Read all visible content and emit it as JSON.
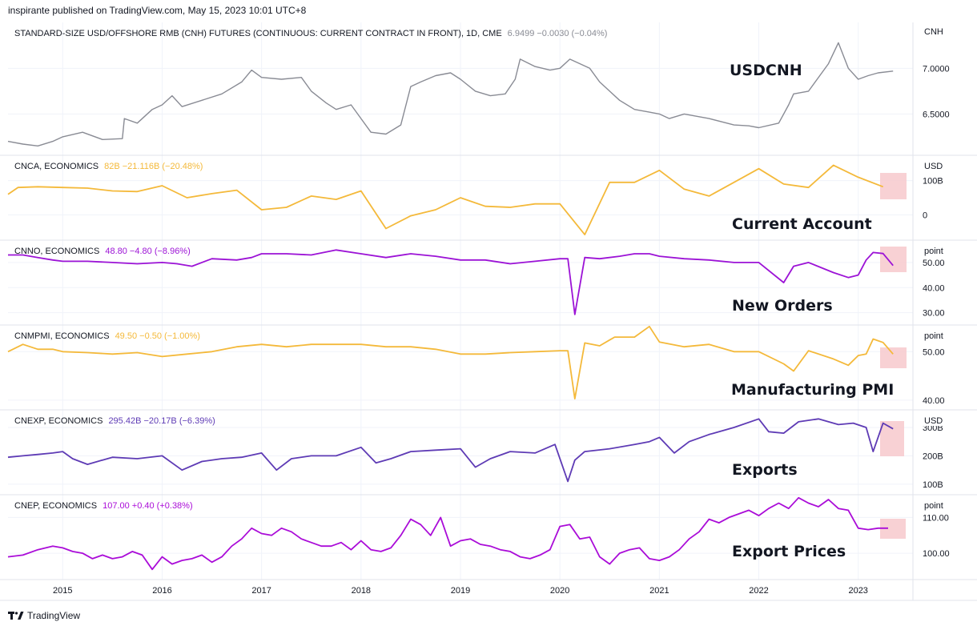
{
  "header": {
    "published": "inspirante published on TradingView.com, May 15, 2023 10:01 UTC+8"
  },
  "footer": {
    "brand": "TradingView",
    "logo_icon": "tradingview-logo-icon"
  },
  "x_axis": {
    "labels": [
      "2015",
      "2016",
      "2017",
      "2018",
      "2019",
      "2020",
      "2021",
      "2022",
      "2023"
    ]
  },
  "colors": {
    "usdcnh": "#898b94",
    "cnca": "#f4b93a",
    "cnno": "#9c13d6",
    "cnmpmi": "#f4b93a",
    "cnexp": "#5e3bb5",
    "cnep": "#aa0cd8",
    "highlight": "#f7c9cd",
    "grid": "#f0f3fa",
    "pane_border": "#e0e3eb"
  },
  "chart_data": [
    {
      "id": "usdcnh",
      "type": "line",
      "legend_title": "STANDARD-SIZE USD/OFFSHORE RMB (CNH) FUTURES (CONTINUOUS: CURRENT CONTRACT IN FRONT), 1D, CME",
      "legend_values": "6.9499  −0.0030 (−0.04%)",
      "caption": "USDCNH",
      "unit": "CNH",
      "y_ticks": [
        {
          "value": 7.0,
          "label": "7.0000"
        },
        {
          "value": 6.5,
          "label": "6.5000"
        }
      ],
      "ylim": [
        6.1,
        7.45
      ],
      "x": [
        2014.45,
        2014.6,
        2014.75,
        2014.9,
        2015.0,
        2015.2,
        2015.4,
        2015.6,
        2015.62,
        2015.75,
        2015.9,
        2016.0,
        2016.1,
        2016.2,
        2016.4,
        2016.6,
        2016.8,
        2016.9,
        2017.0,
        2017.2,
        2017.4,
        2017.5,
        2017.65,
        2017.75,
        2017.9,
        2018.0,
        2018.1,
        2018.25,
        2018.4,
        2018.5,
        2018.6,
        2018.75,
        2018.9,
        2019.0,
        2019.15,
        2019.3,
        2019.45,
        2019.55,
        2019.6,
        2019.75,
        2019.9,
        2020.0,
        2020.1,
        2020.3,
        2020.4,
        2020.5,
        2020.6,
        2020.75,
        2020.9,
        2021.0,
        2021.1,
        2021.25,
        2021.5,
        2021.75,
        2021.9,
        2022.0,
        2022.2,
        2022.3,
        2022.35,
        2022.5,
        2022.7,
        2022.8,
        2022.9,
        2023.0,
        2023.1,
        2023.2,
        2023.35
      ],
      "y": [
        6.2,
        6.17,
        6.15,
        6.2,
        6.25,
        6.3,
        6.22,
        6.23,
        6.45,
        6.4,
        6.55,
        6.6,
        6.7,
        6.58,
        6.65,
        6.72,
        6.85,
        6.98,
        6.9,
        6.88,
        6.9,
        6.75,
        6.62,
        6.55,
        6.6,
        6.45,
        6.3,
        6.28,
        6.38,
        6.8,
        6.85,
        6.92,
        6.95,
        6.88,
        6.75,
        6.7,
        6.72,
        6.88,
        7.1,
        7.02,
        6.98,
        7.0,
        7.1,
        7.0,
        6.85,
        6.75,
        6.65,
        6.55,
        6.52,
        6.5,
        6.45,
        6.5,
        6.45,
        6.38,
        6.37,
        6.35,
        6.4,
        6.6,
        6.72,
        6.75,
        7.05,
        7.28,
        7.0,
        6.88,
        6.92,
        6.95,
        6.97
      ]
    },
    {
      "id": "cnca",
      "type": "line",
      "legend_title": "CNCA, ECONOMICS",
      "legend_values": "82B  −21.116B (−20.48%)",
      "caption": "Current Account",
      "unit": "USD",
      "y_ticks": [
        {
          "value": 100,
          "label": "100B"
        },
        {
          "value": 0,
          "label": "0"
        }
      ],
      "ylim": [
        -60,
        160
      ],
      "x": [
        2014.45,
        2014.55,
        2014.75,
        2015.0,
        2015.25,
        2015.5,
        2015.75,
        2016.0,
        2016.25,
        2016.5,
        2016.75,
        2017.0,
        2017.25,
        2017.5,
        2017.75,
        2018.0,
        2018.25,
        2018.5,
        2018.75,
        2019.0,
        2019.25,
        2019.5,
        2019.75,
        2020.0,
        2020.25,
        2020.5,
        2020.75,
        2021.0,
        2021.25,
        2021.5,
        2021.75,
        2022.0,
        2022.25,
        2022.5,
        2022.75,
        2023.0,
        2023.25
      ],
      "y": [
        60,
        80,
        82,
        80,
        78,
        70,
        68,
        85,
        50,
        62,
        72,
        15,
        22,
        55,
        45,
        70,
        -40,
        -3,
        15,
        50,
        25,
        22,
        32,
        32,
        -58,
        95,
        95,
        130,
        75,
        55,
        95,
        135,
        90,
        80,
        145,
        110,
        82
      ]
    },
    {
      "id": "cnno",
      "type": "line",
      "legend_title": "CNNO, ECONOMICS",
      "legend_values": "48.80  −4.80 (−8.96%)",
      "caption": "New Orders",
      "unit": "point",
      "y_ticks": [
        {
          "value": 50,
          "label": "50.00"
        },
        {
          "value": 40,
          "label": "40.00"
        },
        {
          "value": 30,
          "label": "30.00"
        }
      ],
      "ylim": [
        27,
        57
      ],
      "x": [
        2014.45,
        2014.6,
        2014.75,
        2014.9,
        2015.0,
        2015.25,
        2015.5,
        2015.75,
        2016.0,
        2016.15,
        2016.3,
        2016.5,
        2016.75,
        2016.9,
        2017.0,
        2017.25,
        2017.5,
        2017.75,
        2018.0,
        2018.25,
        2018.5,
        2018.75,
        2019.0,
        2019.25,
        2019.5,
        2019.75,
        2020.0,
        2020.08,
        2020.15,
        2020.25,
        2020.4,
        2020.6,
        2020.75,
        2020.9,
        2021.0,
        2021.25,
        2021.5,
        2021.75,
        2022.0,
        2022.25,
        2022.35,
        2022.5,
        2022.75,
        2022.9,
        2023.0,
        2023.08,
        2023.15,
        2023.25,
        2023.35
      ],
      "y": [
        53,
        53,
        52,
        51,
        50.5,
        50.5,
        50,
        49.5,
        50,
        49.5,
        48.5,
        51.5,
        51,
        52,
        53.5,
        53.5,
        53,
        55,
        53.5,
        52,
        53.5,
        52.5,
        51,
        51,
        49.5,
        50.5,
        51.5,
        51.5,
        29.3,
        52,
        51.5,
        52.5,
        53.5,
        53.5,
        52.5,
        51.5,
        51,
        50,
        50,
        42,
        48.5,
        50,
        46,
        44,
        45,
        51,
        54,
        53.6,
        48.8
      ]
    },
    {
      "id": "cnmpmi",
      "type": "line",
      "legend_title": "CNMPMI, ECONOMICS",
      "legend_values": "49.50  −0.50 (−1.00%)",
      "caption": "Manufacturing PMI",
      "unit": "point",
      "y_ticks": [
        {
          "value": 50,
          "label": "50.00"
        },
        {
          "value": 40,
          "label": "40.00"
        }
      ],
      "ylim": [
        39,
        54.5
      ],
      "x": [
        2014.45,
        2014.6,
        2014.75,
        2014.9,
        2015.0,
        2015.25,
        2015.5,
        2015.75,
        2016.0,
        2016.25,
        2016.5,
        2016.75,
        2017.0,
        2017.25,
        2017.5,
        2017.75,
        2018.0,
        2018.25,
        2018.5,
        2018.75,
        2019.0,
        2019.25,
        2019.5,
        2019.75,
        2020.0,
        2020.08,
        2020.15,
        2020.25,
        2020.4,
        2020.55,
        2020.75,
        2020.9,
        2021.0,
        2021.25,
        2021.5,
        2021.75,
        2022.0,
        2022.25,
        2022.35,
        2022.5,
        2022.75,
        2022.9,
        2023.0,
        2023.08,
        2023.15,
        2023.25,
        2023.35
      ],
      "y": [
        50,
        51.5,
        50.5,
        50.5,
        50,
        49.8,
        49.5,
        49.8,
        49,
        49.5,
        50,
        51,
        51.5,
        51,
        51.5,
        51.5,
        51.5,
        51,
        51,
        50.5,
        49.5,
        49.5,
        49.8,
        50,
        50.2,
        50.2,
        40.3,
        51.8,
        51.2,
        53,
        53,
        55.2,
        52,
        51,
        51.5,
        50,
        50,
        47.5,
        46,
        50.2,
        48.5,
        47.2,
        49.2,
        49.5,
        52.6,
        51.9,
        49.5
      ]
    },
    {
      "id": "cnexp",
      "type": "line",
      "legend_title": "CNEXP, ECONOMICS",
      "legend_values": "295.42B  −20.17B (−6.39%)",
      "caption": "Exports",
      "unit": "USD",
      "y_ticks": [
        {
          "value": 300,
          "label": "300B"
        },
        {
          "value": 200,
          "label": "200B"
        },
        {
          "value": 100,
          "label": "100B"
        }
      ],
      "ylim": [
        80,
        345
      ],
      "x": [
        2014.45,
        2014.6,
        2014.75,
        2014.9,
        2015.0,
        2015.1,
        2015.25,
        2015.5,
        2015.75,
        2016.0,
        2016.2,
        2016.4,
        2016.6,
        2016.8,
        2017.0,
        2017.15,
        2017.3,
        2017.5,
        2017.75,
        2018.0,
        2018.15,
        2018.3,
        2018.5,
        2018.75,
        2019.0,
        2019.15,
        2019.3,
        2019.5,
        2019.75,
        2019.95,
        2020.08,
        2020.15,
        2020.25,
        2020.5,
        2020.75,
        2020.9,
        2021.0,
        2021.15,
        2021.3,
        2021.5,
        2021.75,
        2022.0,
        2022.1,
        2022.25,
        2022.4,
        2022.6,
        2022.8,
        2022.95,
        2023.08,
        2023.15,
        2023.25,
        2023.35
      ],
      "y": [
        195,
        200,
        205,
        210,
        215,
        190,
        170,
        195,
        190,
        200,
        150,
        180,
        190,
        195,
        210,
        150,
        190,
        200,
        200,
        230,
        175,
        190,
        215,
        220,
        225,
        160,
        190,
        215,
        210,
        240,
        110,
        185,
        215,
        225,
        240,
        250,
        265,
        210,
        250,
        275,
        300,
        330,
        285,
        280,
        320,
        330,
        310,
        315,
        300,
        215,
        315,
        295
      ]
    },
    {
      "id": "cnep",
      "type": "line",
      "legend_title": "CNEP, ECONOMICS",
      "legend_values": "107.00  +0.40 (+0.38%)",
      "caption": "Export Prices",
      "unit": "point",
      "y_ticks": [
        {
          "value": 110,
          "label": "110.00"
        },
        {
          "value": 100,
          "label": "100.00"
        }
      ],
      "ylim": [
        94,
        115
      ],
      "x": [
        2014.45,
        2014.6,
        2014.75,
        2014.9,
        2015.0,
        2015.1,
        2015.2,
        2015.3,
        2015.4,
        2015.5,
        2015.6,
        2015.7,
        2015.8,
        2015.9,
        2016.0,
        2016.1,
        2016.2,
        2016.3,
        2016.4,
        2016.5,
        2016.6,
        2016.7,
        2016.8,
        2016.9,
        2017.0,
        2017.1,
        2017.2,
        2017.3,
        2017.4,
        2017.5,
        2017.6,
        2017.7,
        2017.8,
        2017.9,
        2018.0,
        2018.1,
        2018.2,
        2018.3,
        2018.4,
        2018.5,
        2018.6,
        2018.7,
        2018.8,
        2018.9,
        2019.0,
        2019.1,
        2019.2,
        2019.3,
        2019.4,
        2019.5,
        2019.6,
        2019.7,
        2019.8,
        2019.9,
        2020.0,
        2020.1,
        2020.2,
        2020.3,
        2020.4,
        2020.5,
        2020.6,
        2020.7,
        2020.8,
        2020.9,
        2021.0,
        2021.1,
        2021.2,
        2021.3,
        2021.4,
        2021.5,
        2021.6,
        2021.7,
        2021.8,
        2021.9,
        2022.0,
        2022.1,
        2022.2,
        2022.3,
        2022.4,
        2022.5,
        2022.6,
        2022.7,
        2022.8,
        2022.9,
        2023.0,
        2023.1,
        2023.2,
        2023.3
      ],
      "y": [
        99,
        99.5,
        101,
        102,
        101.5,
        100.5,
        100,
        98.5,
        99.5,
        98.5,
        99,
        100.5,
        99.5,
        95.5,
        99,
        97,
        98,
        98.5,
        99.5,
        97.5,
        99,
        102,
        104,
        107,
        105.5,
        105,
        107,
        106,
        104,
        103,
        102,
        102,
        103,
        101,
        103.5,
        101,
        100.5,
        101.5,
        105,
        109.5,
        108,
        105,
        110,
        102,
        103.5,
        104,
        102.5,
        102,
        101,
        100.5,
        99,
        98.5,
        99.5,
        101,
        107.5,
        108,
        104,
        104.5,
        99,
        97,
        100,
        101,
        101.5,
        98.5,
        98,
        99,
        101,
        104,
        106,
        109.5,
        108.5,
        110,
        111,
        112,
        110.5,
        112.5,
        114,
        112.5,
        115.5,
        114,
        113,
        115,
        112.5,
        112,
        107,
        106.6,
        107,
        107
      ]
    }
  ]
}
